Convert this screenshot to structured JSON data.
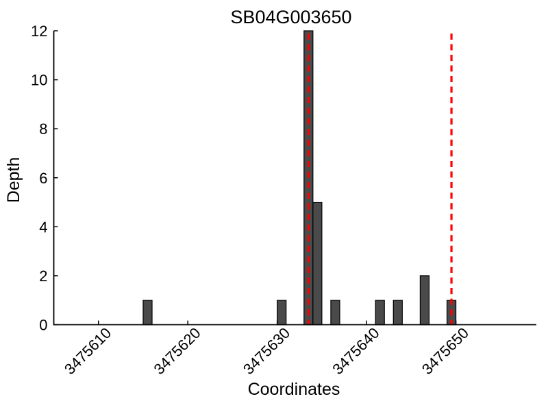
{
  "chart_data": {
    "type": "bar",
    "title": "SB04G003650",
    "xlabel": "Coordinates",
    "ylabel": "Depth",
    "bars": [
      {
        "coordinate": 3475615,
        "depth": 1
      },
      {
        "coordinate": 3475630,
        "depth": 1
      },
      {
        "coordinate": 3475633,
        "depth": 12
      },
      {
        "coordinate": 3475634,
        "depth": 5
      },
      {
        "coordinate": 3475636,
        "depth": 1
      },
      {
        "coordinate": 3475641,
        "depth": 1
      },
      {
        "coordinate": 3475643,
        "depth": 1
      },
      {
        "coordinate": 3475646,
        "depth": 2
      },
      {
        "coordinate": 3475649,
        "depth": 1
      }
    ],
    "bar_width": 1,
    "vlines": [
      3475633.5,
      3475649.5
    ],
    "xticks": [
      3475610,
      3475620,
      3475630,
      3475640,
      3475650
    ],
    "yticks": [
      0,
      2,
      4,
      6,
      8,
      10,
      12
    ],
    "xlim": [
      3475605,
      3475659
    ],
    "ylim": [
      0,
      12
    ],
    "grid": false,
    "legend": null,
    "colors": {
      "bar_fill": "#4a4a4a",
      "bar_edge": "#000000",
      "vline": "#ff0000",
      "axis": "#000000",
      "text": "#000000",
      "background": "#ffffff"
    }
  }
}
